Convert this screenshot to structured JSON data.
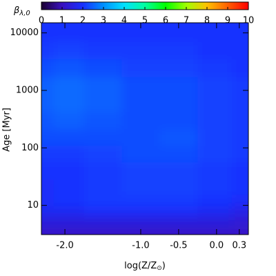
{
  "chart_data": {
    "type": "heatmap",
    "colorbar_label": {
      "symbol": "β",
      "subscript": "λ,0"
    },
    "clim": [
      0,
      10
    ],
    "cticks": [
      0,
      1,
      2,
      3,
      4,
      5,
      6,
      7,
      8,
      9,
      10
    ],
    "colormap": [
      "#1a0030",
      "#3a10c0",
      "#1830ff",
      "#0090ff",
      "#00e0ff",
      "#00ffa0",
      "#00ff00",
      "#a0ff00",
      "#ffc000",
      "#ff6000",
      "#ff0000"
    ],
    "xlabel": {
      "main": "log(Z/Z",
      "subscript": "⊙",
      "end": ")"
    },
    "ylabel": "Age [Myr]",
    "xlim": [
      -2.31,
      0.42
    ],
    "ylim": [
      3.1,
      15000
    ],
    "log_y": true,
    "xticks": [
      {
        "value": -2,
        "label": "-2.0"
      },
      {
        "value": -1,
        "label": "-1.0"
      },
      -0.5,
      {
        "value": 0,
        "label": "0.0"
      },
      0.3
    ],
    "yticks": [
      10,
      100,
      1000,
      10000
    ],
    "x": [
      -2.3,
      -2.0,
      -1.5,
      -1.0,
      -0.5,
      0.0,
      0.4
    ],
    "y": [
      3,
      5,
      8,
      12,
      20,
      40,
      80,
      150,
      300,
      600,
      1200,
      2500,
      5000,
      10000,
      15000
    ],
    "z": [
      [
        1.1,
        1.1,
        1.1,
        1.1,
        1.1,
        1.1,
        1.1
      ],
      [
        1.4,
        1.4,
        1.4,
        1.4,
        1.4,
        1.4,
        1.3
      ],
      [
        1.8,
        1.8,
        1.9,
        1.9,
        1.9,
        1.8,
        1.6
      ],
      [
        1.9,
        2.0,
        2.1,
        2.1,
        2.1,
        2.0,
        1.9
      ],
      [
        1.9,
        2.0,
        2.1,
        2.2,
        2.2,
        2.1,
        2.0
      ],
      [
        2.0,
        2.0,
        2.1,
        2.2,
        2.2,
        2.1,
        2.0
      ],
      [
        2.1,
        2.1,
        2.2,
        2.3,
        2.3,
        2.2,
        2.1
      ],
      [
        2.3,
        2.3,
        2.3,
        2.3,
        2.4,
        2.2,
        2.1
      ],
      [
        2.4,
        2.5,
        2.4,
        2.3,
        2.3,
        2.2,
        2.1
      ],
      [
        2.5,
        2.6,
        2.5,
        2.3,
        2.3,
        2.2,
        2.1
      ],
      [
        2.5,
        2.6,
        2.5,
        2.3,
        2.3,
        2.2,
        2.1
      ],
      [
        2.3,
        2.4,
        2.3,
        2.2,
        2.2,
        2.1,
        2.0
      ],
      [
        2.1,
        2.2,
        2.1,
        2.1,
        2.1,
        2.0,
        2.0
      ],
      [
        2.0,
        2.0,
        2.0,
        2.0,
        2.0,
        2.0,
        2.0
      ],
      [
        2.0,
        2.0,
        2.0,
        2.0,
        2.0,
        2.0,
        2.0
      ]
    ]
  }
}
